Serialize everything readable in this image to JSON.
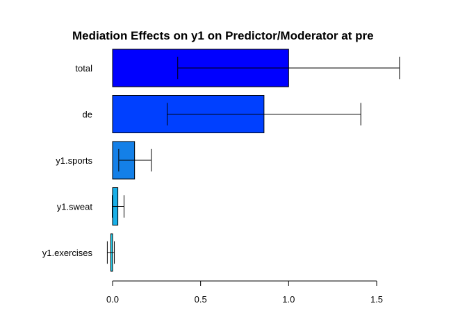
{
  "chart_data": {
    "type": "bar",
    "orientation": "horizontal",
    "title": "Mediation Effects on y1 on Predictor/Moderator at pre",
    "xlabel": "",
    "ylabel": "",
    "categories": [
      "total",
      "de",
      "y1.sports",
      "y1.sweat",
      "y1.exercises"
    ],
    "values": [
      1.0,
      0.86,
      0.125,
      0.03,
      -0.01
    ],
    "error_low": [
      0.37,
      0.31,
      0.035,
      -0.002,
      -0.03
    ],
    "error_high": [
      1.63,
      1.41,
      0.22,
      0.065,
      0.01
    ],
    "bar_colors": [
      "#0000ff",
      "#0040ff",
      "#1480e8",
      "#19b0e8",
      "#20d0f0"
    ],
    "xlim": [
      0,
      1.5
    ],
    "x_ticks": [
      0.0,
      0.5,
      1.0,
      1.5
    ],
    "x_tick_labels": [
      "0.0",
      "0.5",
      "1.0",
      "1.5"
    ],
    "grid": false
  }
}
